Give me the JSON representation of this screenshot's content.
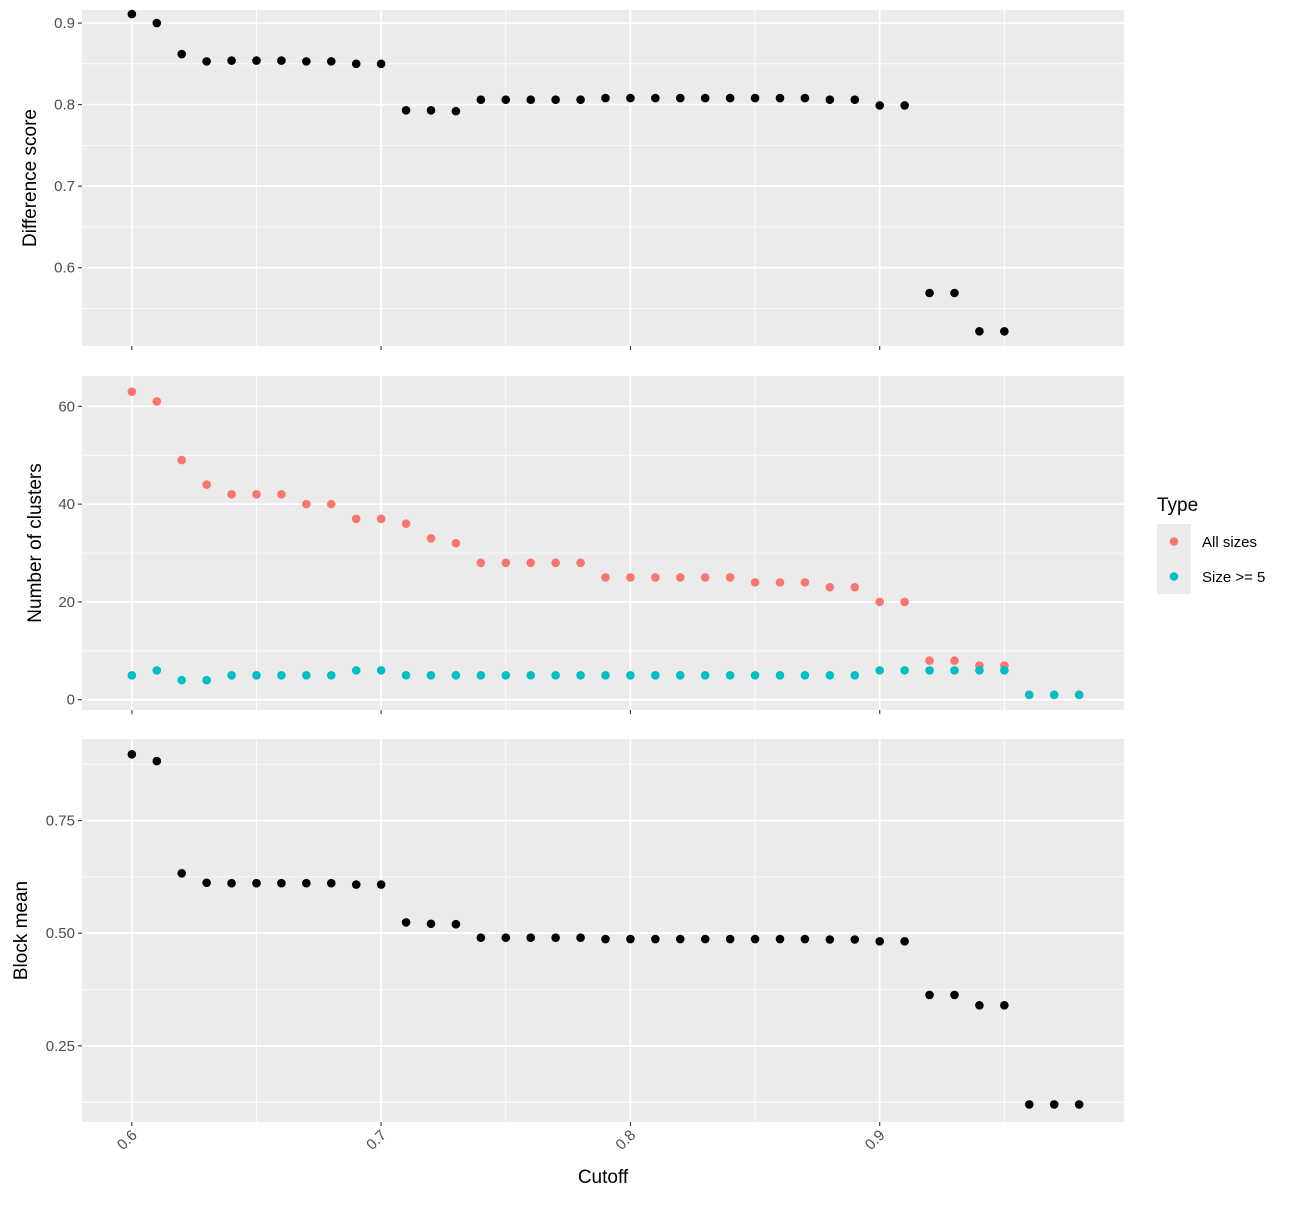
{
  "chart_data": [
    {
      "type": "scatter",
      "panel": "top",
      "ylabel": "Difference score",
      "xlim": [
        0.58,
        0.998
      ],
      "ylim": [
        0.504,
        0.916
      ],
      "y_ticks": [
        0.6,
        0.7,
        0.8,
        0.9
      ],
      "y_tick_labels": [
        "0.6",
        "0.7",
        "0.8",
        "0.9"
      ],
      "point_color": "#000000",
      "series": [
        {
          "x": [
            0.6,
            0.61,
            0.62,
            0.63,
            0.64,
            0.65,
            0.66,
            0.67,
            0.68,
            0.69,
            0.7,
            0.71,
            0.72,
            0.73,
            0.74,
            0.75,
            0.76,
            0.77,
            0.78,
            0.79,
            0.8,
            0.81,
            0.82,
            0.83,
            0.84,
            0.85,
            0.86,
            0.87,
            0.88,
            0.89,
            0.9,
            0.91,
            0.92,
            0.93,
            0.94,
            0.95
          ],
          "y": [
            0.911,
            0.9,
            0.862,
            0.853,
            0.854,
            0.854,
            0.854,
            0.853,
            0.853,
            0.85,
            0.85,
            0.793,
            0.793,
            0.792,
            0.806,
            0.806,
            0.806,
            0.806,
            0.806,
            0.808,
            0.808,
            0.808,
            0.808,
            0.808,
            0.808,
            0.808,
            0.808,
            0.808,
            0.806,
            0.806,
            0.799,
            0.799,
            0.569,
            0.569,
            0.522,
            0.522
          ]
        }
      ]
    },
    {
      "type": "scatter",
      "panel": "middle",
      "ylabel": "Number of clusters",
      "xlim": [
        0.58,
        0.998
      ],
      "ylim": [
        -2.1,
        66.2
      ],
      "y_ticks": [
        0,
        20,
        40,
        60
      ],
      "y_tick_labels": [
        "0",
        "20",
        "40",
        "60"
      ],
      "series": [
        {
          "name": "All sizes",
          "color": "#F8766D",
          "x": [
            0.6,
            0.61,
            0.62,
            0.63,
            0.64,
            0.65,
            0.66,
            0.67,
            0.68,
            0.69,
            0.7,
            0.71,
            0.72,
            0.73,
            0.74,
            0.75,
            0.76,
            0.77,
            0.78,
            0.79,
            0.8,
            0.81,
            0.82,
            0.83,
            0.84,
            0.85,
            0.86,
            0.87,
            0.88,
            0.89,
            0.9,
            0.91,
            0.92,
            0.93,
            0.94,
            0.95,
            0.96,
            0.97,
            0.98
          ],
          "y": [
            63,
            61,
            49,
            44,
            42,
            42,
            42,
            40,
            40,
            37,
            37,
            36,
            33,
            32,
            28,
            28,
            28,
            28,
            28,
            25,
            25,
            25,
            25,
            25,
            25,
            24,
            24,
            24,
            23,
            23,
            20,
            20,
            8,
            8,
            7,
            7,
            1,
            1,
            1
          ]
        },
        {
          "name": "Size >= 5",
          "color": "#00BFC4",
          "x": [
            0.6,
            0.61,
            0.62,
            0.63,
            0.64,
            0.65,
            0.66,
            0.67,
            0.68,
            0.69,
            0.7,
            0.71,
            0.72,
            0.73,
            0.74,
            0.75,
            0.76,
            0.77,
            0.78,
            0.79,
            0.8,
            0.81,
            0.82,
            0.83,
            0.84,
            0.85,
            0.86,
            0.87,
            0.88,
            0.89,
            0.9,
            0.91,
            0.92,
            0.93,
            0.94,
            0.95,
            0.96,
            0.97,
            0.98
          ],
          "y": [
            5,
            6,
            4,
            4,
            5,
            5,
            5,
            5,
            5,
            6,
            6,
            5,
            5,
            5,
            5,
            5,
            5,
            5,
            5,
            5,
            5,
            5,
            5,
            5,
            5,
            5,
            5,
            5,
            5,
            5,
            6,
            6,
            6,
            6,
            6,
            6,
            1,
            1,
            1
          ]
        }
      ]
    },
    {
      "type": "scatter",
      "panel": "bottom",
      "ylabel": "Block mean",
      "xlabel": "Cutoff",
      "xlim": [
        0.58,
        0.998
      ],
      "ylim": [
        0.081,
        0.931
      ],
      "x_ticks": [
        0.6,
        0.7,
        0.8,
        0.9
      ],
      "x_tick_labels": [
        "0.6",
        "0.7",
        "0.8",
        "0.9"
      ],
      "y_ticks": [
        0.25,
        0.5,
        0.75
      ],
      "y_tick_labels": [
        "0.25",
        "0.50",
        "0.75"
      ],
      "point_color": "#000000",
      "series": [
        {
          "x": [
            0.6,
            0.61,
            0.62,
            0.63,
            0.64,
            0.65,
            0.66,
            0.67,
            0.68,
            0.69,
            0.7,
            0.71,
            0.72,
            0.73,
            0.74,
            0.75,
            0.76,
            0.77,
            0.78,
            0.79,
            0.8,
            0.81,
            0.82,
            0.83,
            0.84,
            0.85,
            0.86,
            0.87,
            0.88,
            0.89,
            0.9,
            0.91,
            0.92,
            0.93,
            0.94,
            0.95,
            0.96,
            0.97,
            0.98
          ],
          "y": [
            0.897,
            0.882,
            0.633,
            0.612,
            0.611,
            0.611,
            0.611,
            0.611,
            0.611,
            0.608,
            0.608,
            0.524,
            0.521,
            0.52,
            0.49,
            0.49,
            0.49,
            0.49,
            0.49,
            0.487,
            0.487,
            0.487,
            0.487,
            0.487,
            0.487,
            0.487,
            0.487,
            0.487,
            0.486,
            0.486,
            0.482,
            0.482,
            0.363,
            0.363,
            0.34,
            0.34,
            0.12,
            0.12,
            0.12
          ]
        }
      ]
    }
  ],
  "legend": {
    "title": "Type",
    "placement": "right",
    "items": [
      {
        "label": "All sizes",
        "color": "#F8766D"
      },
      {
        "label": "Size >= 5",
        "color": "#00BFC4"
      }
    ]
  }
}
